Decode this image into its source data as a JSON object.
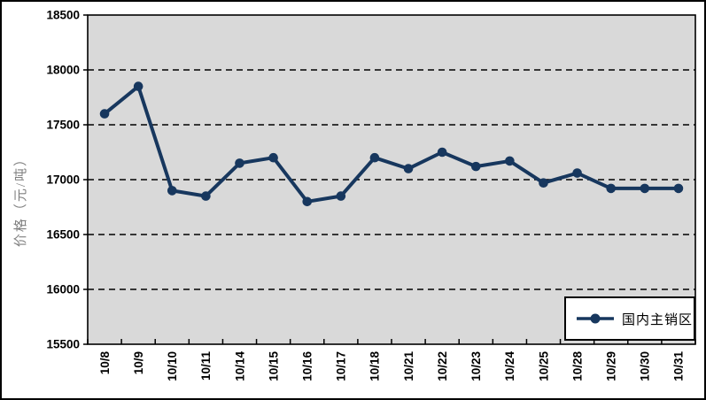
{
  "chart_data": {
    "type": "line",
    "title": "",
    "xlabel": "",
    "ylabel": "价格（元/吨）",
    "categories": [
      "10/8",
      "10/9",
      "10/10",
      "10/11",
      "10/14",
      "10/15",
      "10/16",
      "10/17",
      "10/18",
      "10/21",
      "10/22",
      "10/23",
      "10/24",
      "10/25",
      "10/28",
      "10/29",
      "10/30",
      "10/31"
    ],
    "series": [
      {
        "name": "国内主销区",
        "values": [
          17600,
          17850,
          16900,
          16850,
          17150,
          17200,
          16800,
          16850,
          17200,
          17100,
          17250,
          17120,
          17170,
          16970,
          17060,
          16920,
          16920,
          16920
        ],
        "color": "#17375E",
        "marker": "circle"
      }
    ],
    "ylim": [
      15500,
      18500
    ],
    "ytick_step": 500,
    "grid": "horizontal-dashed",
    "plot_background": "#D9D9D9",
    "axis_color": "#000000",
    "legend_position": "bottom-right-inside"
  }
}
